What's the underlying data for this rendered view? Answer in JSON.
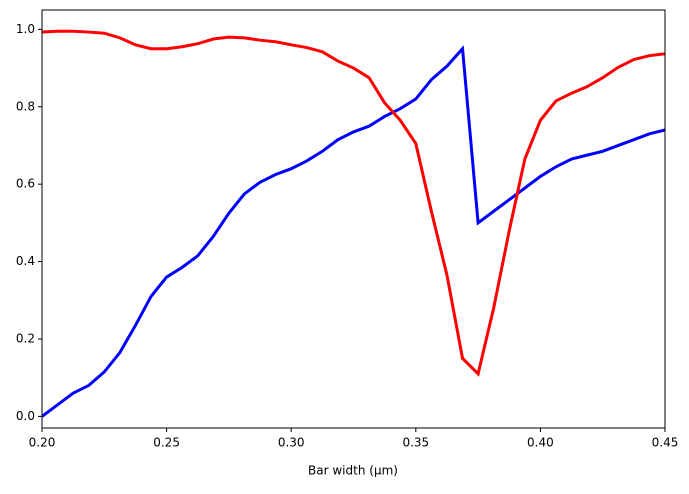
{
  "chart_data": {
    "type": "line",
    "xlabel": "Bar width (µm)",
    "x": [
      0.2,
      0.20625,
      0.2125,
      0.21875,
      0.225,
      0.23125,
      0.2375,
      0.24375,
      0.25,
      0.25625,
      0.2625,
      0.26875,
      0.275,
      0.28125,
      0.2875,
      0.29375,
      0.3,
      0.30625,
      0.3125,
      0.31875,
      0.325,
      0.33125,
      0.3375,
      0.34375,
      0.35,
      0.35625,
      0.3625,
      0.36875,
      0.375,
      0.38125,
      0.3875,
      0.39375,
      0.4,
      0.40625,
      0.4125,
      0.41875,
      0.425,
      0.43125,
      0.4375,
      0.44375,
      0.45
    ],
    "series": [
      {
        "color": "#0000ff",
        "values": [
          0,
          0.03,
          0.06,
          0.08,
          0.115,
          0.165,
          0.235,
          0.31,
          0.36,
          0.385,
          0.415,
          0.465,
          0.525,
          0.575,
          0.605,
          0.625,
          0.64,
          0.66,
          0.685,
          0.715,
          0.735,
          0.75,
          0.775,
          0.795,
          0.82,
          0.87,
          0.905,
          0.95,
          0.5,
          0.53,
          0.56,
          0.59,
          0.62,
          0.645,
          0.665,
          0.675,
          0.685,
          0.7,
          0.715,
          0.73,
          0.74
        ]
      },
      {
        "color": "#ff0000",
        "values": [
          0.993,
          0.995,
          0.995,
          0.993,
          0.99,
          0.978,
          0.96,
          0.95,
          0.95,
          0.955,
          0.963,
          0.975,
          0.98,
          0.978,
          0.972,
          0.968,
          0.96,
          0.953,
          0.942,
          0.918,
          0.9,
          0.875,
          0.81,
          0.765,
          0.705,
          0.53,
          0.365,
          0.15,
          0.11,
          0.28,
          0.48,
          0.665,
          0.765,
          0.815,
          0.835,
          0.852,
          0.875,
          0.902,
          0.922,
          0.932,
          0.937
        ]
      }
    ],
    "xlim": [
      0.2,
      0.45
    ],
    "xticks": [
      {
        "value": 0.2,
        "label": "0.20"
      },
      {
        "value": 0.25,
        "label": "0.25"
      },
      {
        "value": 0.3,
        "label": "0.30"
      },
      {
        "value": 0.35,
        "label": "0.35"
      },
      {
        "value": 0.4,
        "label": "0.40"
      },
      {
        "value": 0.45,
        "label": "0.45"
      }
    ],
    "ylim": [
      -0.03,
      1.05
    ],
    "yticks": [
      {
        "value": 0,
        "label": "0.0"
      },
      0.2,
      0.4,
      0.6,
      0.8,
      {
        "value": 1,
        "label": "1.0"
      }
    ],
    "grid": false
  }
}
